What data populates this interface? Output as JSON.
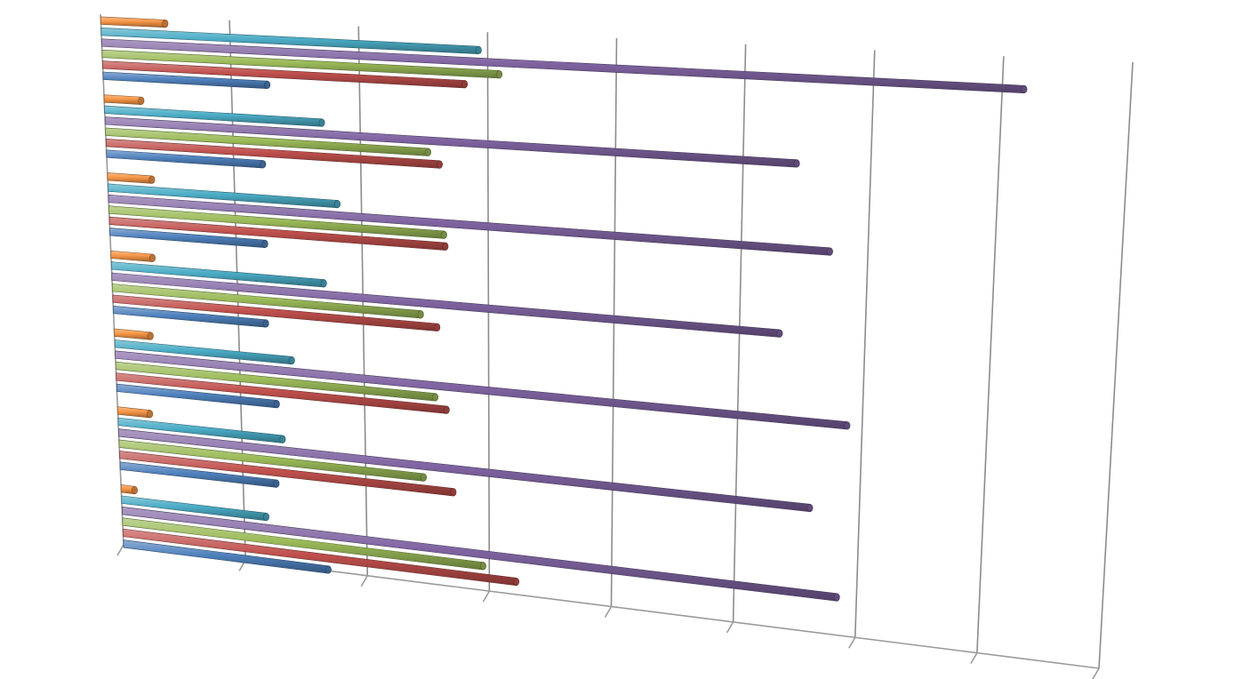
{
  "chart_data": {
    "type": "bar",
    "orientation": "horizontal",
    "style": "3d-cylinder-perspective",
    "title": "",
    "xlabel": "",
    "ylabel": "",
    "grid": true,
    "legend": "none",
    "categories": [
      "",
      "",
      "",
      "",
      "",
      "",
      ""
    ],
    "xlim": [
      0,
      8
    ],
    "series": [
      {
        "color": "#4f81bd",
        "values": [
          1.28,
          1.23,
          1.23,
          1.22,
          1.29,
          1.27,
          1.68
        ]
      },
      {
        "color": "#c0504d",
        "values": [
          2.82,
          2.62,
          2.66,
          2.59,
          2.66,
          2.71,
          3.22
        ]
      },
      {
        "color": "#9bbb59",
        "values": [
          3.09,
          2.53,
          2.65,
          2.46,
          2.57,
          2.47,
          2.95
        ]
      },
      {
        "color": "#8064a2",
        "values": [
          7.17,
          5.42,
          5.7,
          5.32,
          5.88,
          5.6,
          5.84
        ]
      },
      {
        "color": "#4bacc6",
        "values": [
          2.93,
          1.7,
          1.81,
          1.69,
          1.42,
          1.33,
          1.18
        ]
      },
      {
        "color": "#f79646",
        "values": [
          0.5,
          0.29,
          0.35,
          0.33,
          0.29,
          0.26,
          0.11
        ]
      }
    ]
  }
}
